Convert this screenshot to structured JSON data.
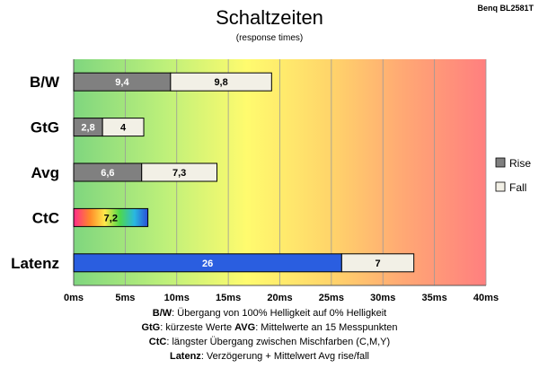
{
  "chart_data": {
    "type": "bar",
    "orientation": "horizontal",
    "stacked": true,
    "title": "Schaltzeiten",
    "subtitle": "(response times)",
    "model": "Benq BL2581T",
    "categories": [
      "B/W",
      "GtG",
      "Avg",
      "CtC",
      "Latenz"
    ],
    "series": [
      {
        "name": "Rise",
        "values": [
          9.4,
          2.8,
          6.6,
          7.2,
          26
        ],
        "color": "#808080"
      },
      {
        "name": "Fall",
        "values": [
          9.8,
          4,
          7.3,
          null,
          7
        ],
        "color": "#f2f0e6"
      }
    ],
    "special_fills": {
      "CtC": "rainbow",
      "Latenz": "#2a5ee0"
    },
    "xlim": [
      0,
      40
    ],
    "xticks": [
      0,
      5,
      10,
      15,
      20,
      25,
      30,
      35,
      40
    ],
    "xtick_labels": [
      "0ms",
      "5ms",
      "10ms",
      "15ms",
      "20ms",
      "25ms",
      "30ms",
      "35ms",
      "40ms"
    ],
    "background": "gradient green-yellow-orange-red",
    "grid": true,
    "legend_position": "right",
    "footnotes": [
      {
        "runs": [
          {
            "b": true,
            "t": "B/W"
          },
          {
            "b": false,
            "t": ":  Übergang von 100% Helligkeit auf 0% Helligkeit"
          }
        ]
      },
      {
        "runs": [
          {
            "b": true,
            "t": "GtG"
          },
          {
            "b": false,
            "t": ": kürzeste  Werte       "
          },
          {
            "b": true,
            "t": "AVG"
          },
          {
            "b": false,
            "t": ": Mittelwerte  an 15 Messpunkten"
          }
        ]
      },
      {
        "runs": [
          {
            "b": true,
            "t": "CtC"
          },
          {
            "b": false,
            "t": ": längster Übergang  zwischen Mischfarben (C,M,Y)"
          }
        ]
      },
      {
        "runs": [
          {
            "b": true,
            "t": "Latenz"
          },
          {
            "b": false,
            "t": ": Verzögerung  + Mittelwert Avg rise/fall"
          }
        ]
      }
    ]
  }
}
